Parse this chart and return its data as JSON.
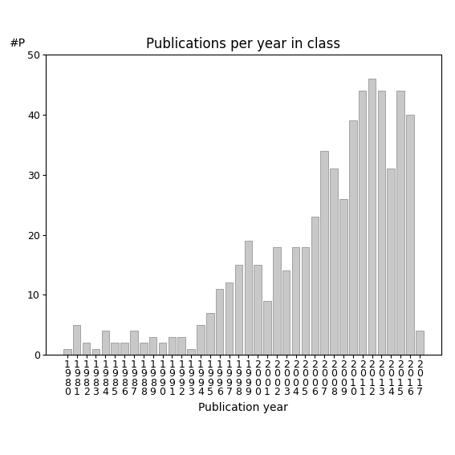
{
  "title": "Publications per year in class",
  "xlabel": "Publication year",
  "ylabel_text": "#P",
  "years": [
    "1980",
    "1981",
    "1982",
    "1983",
    "1984",
    "1985",
    "1986",
    "1987",
    "1988",
    "1989",
    "1990",
    "1991",
    "1992",
    "1993",
    "1994",
    "1995",
    "1996",
    "1997",
    "1998",
    "1999",
    "2000",
    "2001",
    "2002",
    "2003",
    "2004",
    "2005",
    "2006",
    "2007",
    "2008",
    "2009",
    "2010",
    "2011",
    "2012",
    "2013",
    "2014",
    "2015",
    "2016",
    "2017"
  ],
  "values": [
    1,
    5,
    2,
    1,
    4,
    2,
    2,
    4,
    2,
    3,
    2,
    3,
    3,
    1,
    5,
    7,
    11,
    12,
    15,
    19,
    15,
    9,
    18,
    14,
    18,
    18,
    23,
    34,
    31,
    26,
    39,
    44,
    46,
    44,
    31,
    44,
    40,
    4
  ],
  "bar_color": "#c8c8c8",
  "bar_edge_color": "#888888",
  "ylim": [
    0,
    50
  ],
  "yticks": [
    0,
    10,
    20,
    30,
    40,
    50
  ],
  "background_color": "#ffffff",
  "title_fontsize": 12,
  "label_fontsize": 10,
  "tick_fontsize": 9,
  "yp_fontsize": 10
}
